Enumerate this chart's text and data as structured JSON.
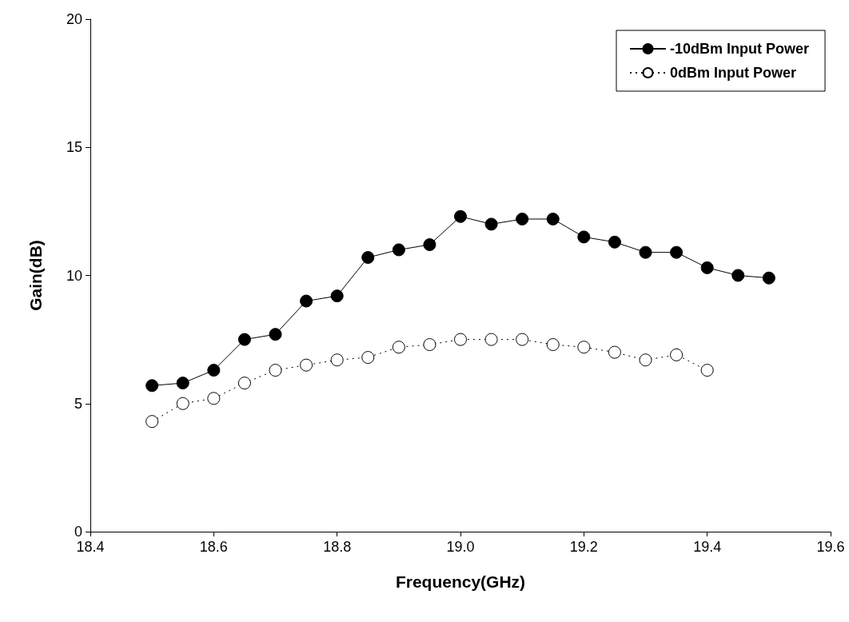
{
  "chart_data": {
    "type": "line",
    "xlabel": "Frequency(GHz)",
    "ylabel": "Gain(dB)",
    "xlim": [
      18.4,
      19.6
    ],
    "xticks": [
      {
        "value": 18.4,
        "label": "18.4"
      },
      {
        "value": 18.6,
        "label": "18.6"
      },
      {
        "value": 18.8,
        "label": "18.8"
      },
      {
        "value": 19.0,
        "label": "19.0"
      },
      {
        "value": 19.2,
        "label": "19.2"
      },
      {
        "value": 19.4,
        "label": "19.4"
      },
      {
        "value": 19.6,
        "label": "19.6"
      }
    ],
    "ylim": [
      0,
      20
    ],
    "yticks": [
      0,
      5,
      10,
      15,
      20
    ],
    "grid": false,
    "legend": "top right",
    "series": [
      {
        "name": "-10dBm Input Power",
        "color": "#000000",
        "marker": "circle",
        "line_style": "solid",
        "x": [
          18.5,
          18.55,
          18.6,
          18.65,
          18.7,
          18.75,
          18.8,
          18.85,
          18.9,
          18.95,
          19.0,
          19.05,
          19.1,
          19.15,
          19.2,
          19.25,
          19.3,
          19.35,
          19.4,
          19.45,
          19.5
        ],
        "values": [
          5.7,
          5.8,
          6.3,
          7.5,
          7.7,
          9.0,
          9.2,
          10.7,
          11.0,
          11.2,
          12.3,
          12.0,
          12.2,
          12.2,
          11.5,
          11.3,
          10.9,
          10.9,
          10.3,
          10.0,
          9.9
        ]
      },
      {
        "name": "0dBm Input Power",
        "color": "#000000",
        "marker": "circle",
        "line_style": "dotted",
        "x": [
          18.5,
          18.55,
          18.6,
          18.65,
          18.7,
          18.75,
          18.8,
          18.85,
          18.9,
          18.95,
          19.0,
          19.05,
          19.1,
          19.15,
          19.2,
          19.25,
          19.3,
          19.35,
          19.4
        ],
        "values": [
          4.3,
          5.0,
          5.2,
          5.8,
          6.3,
          6.5,
          6.7,
          6.8,
          7.2,
          7.3,
          7.5,
          7.5,
          7.5,
          7.3,
          7.2,
          7.0,
          6.7,
          6.9,
          6.3
        ]
      }
    ]
  }
}
